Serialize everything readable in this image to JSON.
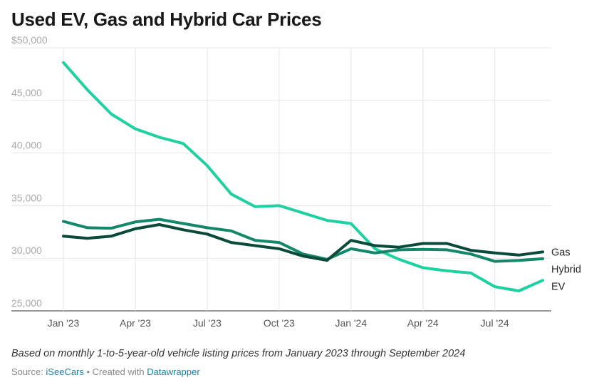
{
  "title": "Used EV, Gas and Hybrid Car Prices",
  "note": "Based on monthly 1-to-5-year-old vehicle listing prices from January 2023 through September 2024",
  "source": {
    "prefix": "Source: ",
    "source_link": "iSeeCars",
    "separator": " • Created with ",
    "tool_link": "Datawrapper"
  },
  "chart_data": {
    "type": "line",
    "title": "Used EV, Gas and Hybrid Car Prices",
    "xlabel": "",
    "ylabel": "",
    "x": [
      "2023-01",
      "2023-02",
      "2023-03",
      "2023-04",
      "2023-05",
      "2023-06",
      "2023-07",
      "2023-08",
      "2023-09",
      "2023-10",
      "2023-11",
      "2023-12",
      "2024-01",
      "2024-02",
      "2024-03",
      "2024-04",
      "2024-05",
      "2024-06",
      "2024-07",
      "2024-08",
      "2024-09"
    ],
    "x_tick_labels": [
      "Jan '23",
      "Apr '23",
      "Jul '23",
      "Oct '23",
      "Jan '24",
      "Apr '24",
      "Jul '24"
    ],
    "x_tick_positions": [
      0,
      3,
      6,
      9,
      12,
      15,
      18
    ],
    "ylim": [
      25000,
      50000
    ],
    "y_ticks": [
      50000,
      45000,
      40000,
      35000,
      30000,
      25000
    ],
    "y_tick_labels": [
      "$50,000",
      "45,000",
      "40,000",
      "35,000",
      "30,000",
      "25,000"
    ],
    "grid": true,
    "legend": "inline labels at line ends (right)",
    "series": [
      {
        "name": "EV",
        "color": "#1fd1a0",
        "values": [
          48600,
          46000,
          43700,
          42300,
          41500,
          40900,
          38800,
          36100,
          34900,
          35000,
          34300,
          33600,
          33300,
          30900,
          29900,
          29100,
          28800,
          28600,
          27300,
          26900,
          27900
        ]
      },
      {
        "name": "Hybrid",
        "color": "#13876a",
        "values": [
          33500,
          32900,
          32850,
          33450,
          33700,
          33300,
          32900,
          32600,
          31700,
          31500,
          30400,
          29900,
          30900,
          30500,
          30800,
          30850,
          30800,
          30400,
          29700,
          29800,
          29950
        ]
      },
      {
        "name": "Gas",
        "color": "#0a4a3a",
        "values": [
          32100,
          31900,
          32100,
          32800,
          33200,
          32700,
          32300,
          31500,
          31200,
          30900,
          30200,
          29800,
          31700,
          31200,
          31050,
          31400,
          31400,
          30750,
          30500,
          30300,
          30600
        ]
      }
    ]
  }
}
